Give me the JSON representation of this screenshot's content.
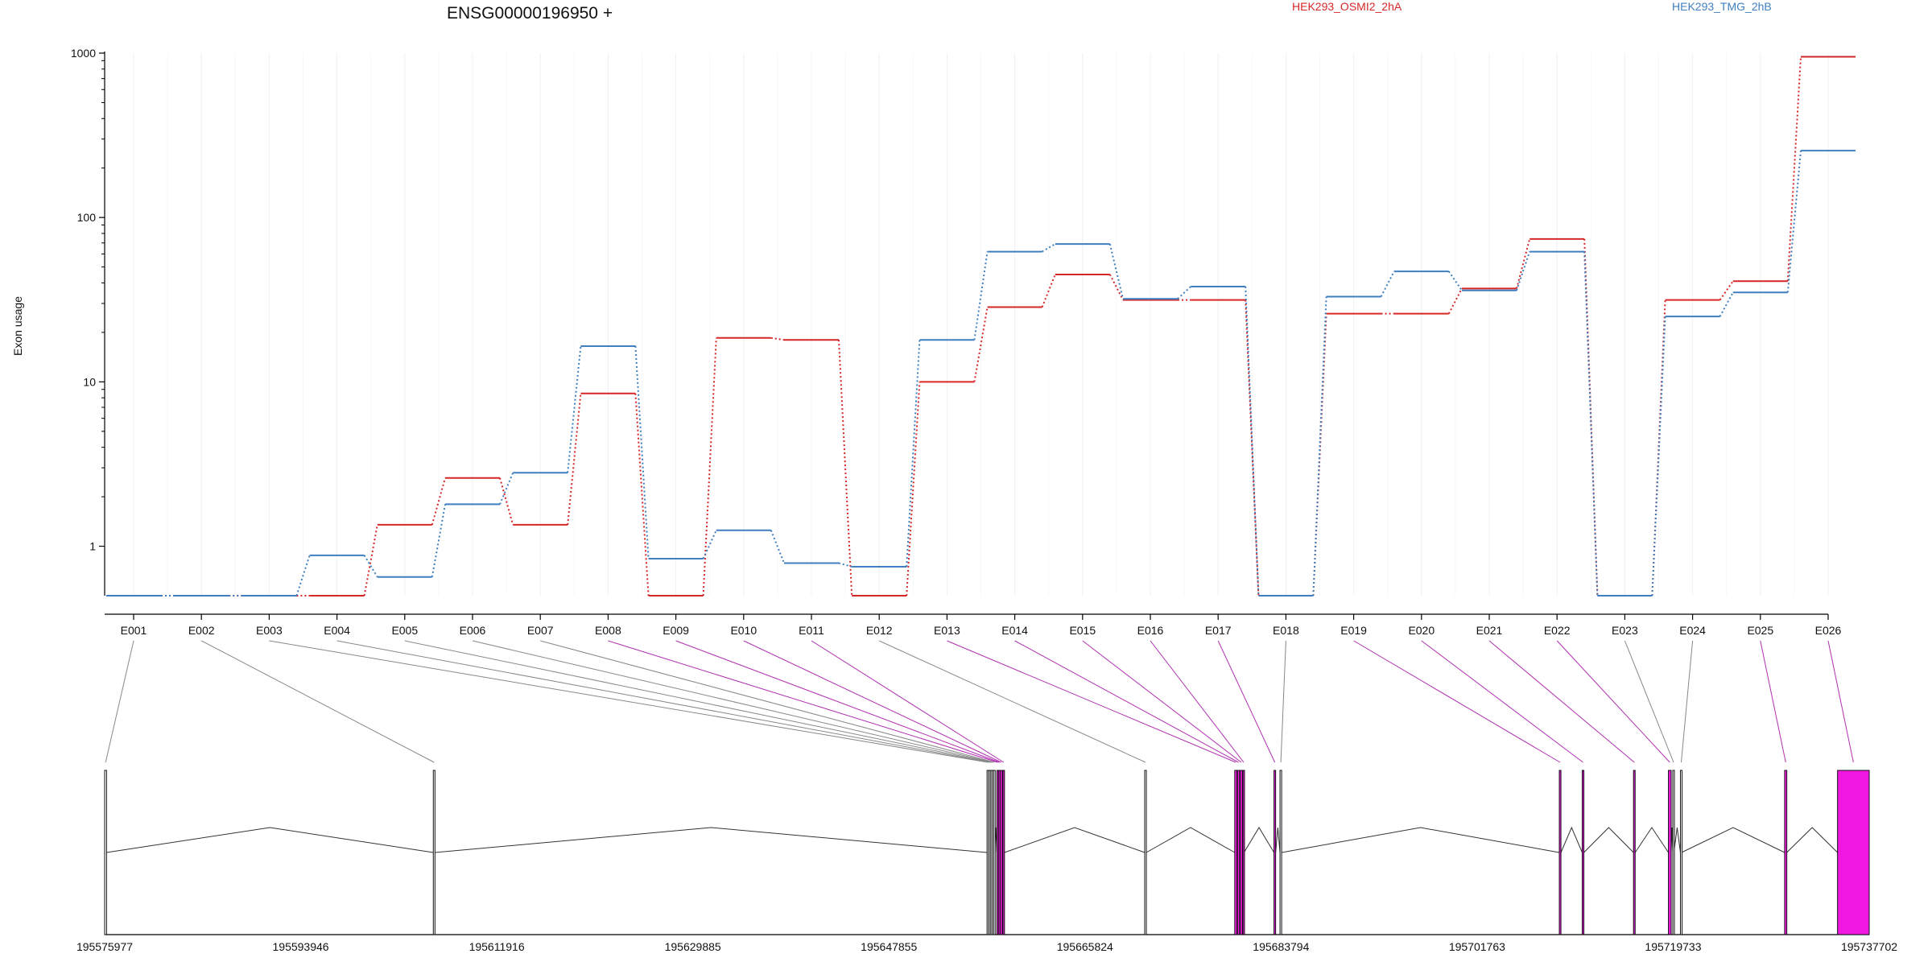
{
  "chart_data": {
    "type": "line",
    "title": "ENSG00000196950 +",
    "ylabel": "Exon usage",
    "xlabel": "",
    "y_scale": "log",
    "ylim": [
      0.5,
      1000
    ],
    "yticks": [
      1,
      10,
      100,
      1000
    ],
    "ytick_labels": [
      "1",
      "10",
      "100",
      "1000"
    ],
    "grid": "vertical",
    "legend_placement": "top",
    "categories": [
      "E001",
      "E002",
      "E003",
      "E004",
      "E005",
      "E006",
      "E007",
      "E008",
      "E009",
      "E010",
      "E011",
      "E012",
      "E013",
      "E014",
      "E015",
      "E016",
      "E017",
      "E018",
      "E019",
      "E020",
      "E021",
      "E022",
      "E023",
      "E024",
      "E025",
      "E026"
    ],
    "series": [
      {
        "name": "HEK293_OSMI2_2hA",
        "color": "#d62728",
        "values": [
          0.5,
          0.5,
          0.5,
          0.5,
          1.35,
          2.6,
          1.35,
          8.5,
          0.5,
          18.5,
          18.0,
          0.5,
          10.0,
          28.5,
          45.0,
          31.5,
          31.5,
          0.5,
          26.0,
          26.0,
          37.0,
          74.0,
          0.5,
          31.5,
          41.0,
          950.0
        ]
      },
      {
        "name": "HEK293_TMG_2hB",
        "color": "#3f7fbf",
        "values": [
          0.5,
          0.5,
          0.5,
          0.88,
          0.65,
          1.8,
          2.8,
          16.5,
          0.84,
          1.25,
          0.79,
          0.75,
          18.0,
          62.0,
          69.0,
          32.0,
          38.0,
          0.5,
          33.0,
          47.0,
          36.0,
          62.0,
          0.5,
          25.0,
          35.0,
          255.0
        ]
      }
    ],
    "gene_model": {
      "coordinate_labels": [
        "195575977",
        "195593946",
        "195611916",
        "195629885",
        "195647855",
        "195665824",
        "195683794",
        "195701763",
        "195719733",
        "195737702"
      ],
      "exons": [
        {
          "id": "E001",
          "start": 195575977,
          "end": 195576150,
          "highlight": false
        },
        {
          "id": "E002",
          "start": 195606100,
          "end": 195606250,
          "highlight": false
        },
        {
          "id": "E003",
          "start": 195656850,
          "end": 195656950,
          "highlight": false
        },
        {
          "id": "E004",
          "start": 195657000,
          "end": 195657100,
          "highlight": false
        },
        {
          "id": "E005",
          "start": 195657150,
          "end": 195657250,
          "highlight": false
        },
        {
          "id": "E006",
          "start": 195657300,
          "end": 195657400,
          "highlight": false
        },
        {
          "id": "E007",
          "start": 195657450,
          "end": 195657550,
          "highlight": false
        },
        {
          "id": "E008",
          "start": 195657750,
          "end": 195657850,
          "highlight": true
        },
        {
          "id": "E009",
          "start": 195657900,
          "end": 195658000,
          "highlight": true
        },
        {
          "id": "E010",
          "start": 195658050,
          "end": 195658250,
          "highlight": true
        },
        {
          "id": "E011",
          "start": 195658300,
          "end": 195658450,
          "highlight": true
        },
        {
          "id": "E012",
          "start": 195671300,
          "end": 195671450,
          "highlight": false
        },
        {
          "id": "E013",
          "start": 195679550,
          "end": 195679750,
          "highlight": true
        },
        {
          "id": "E014",
          "start": 195679800,
          "end": 195680000,
          "highlight": true
        },
        {
          "id": "E015",
          "start": 195680050,
          "end": 195680250,
          "highlight": true
        },
        {
          "id": "E016",
          "start": 195680300,
          "end": 195680400,
          "highlight": true
        },
        {
          "id": "E017",
          "start": 195683150,
          "end": 195683300,
          "highlight": true
        },
        {
          "id": "E018",
          "start": 195683700,
          "end": 195683850,
          "highlight": false
        },
        {
          "id": "E019",
          "start": 195709300,
          "end": 195709450,
          "highlight": true
        },
        {
          "id": "E020",
          "start": 195711400,
          "end": 195711550,
          "highlight": true
        },
        {
          "id": "E021",
          "start": 195716100,
          "end": 195716250,
          "highlight": true
        },
        {
          "id": "E022",
          "start": 195719300,
          "end": 195719550,
          "highlight": true
        },
        {
          "id": "E023",
          "start": 195719700,
          "end": 195719800,
          "highlight": false
        },
        {
          "id": "E024",
          "start": 195720400,
          "end": 195720500,
          "highlight": false
        },
        {
          "id": "E025",
          "start": 195729950,
          "end": 195730150,
          "highlight": true
        },
        {
          "id": "E026",
          "start": 195734800,
          "end": 195737702,
          "highlight": true
        }
      ]
    }
  }
}
